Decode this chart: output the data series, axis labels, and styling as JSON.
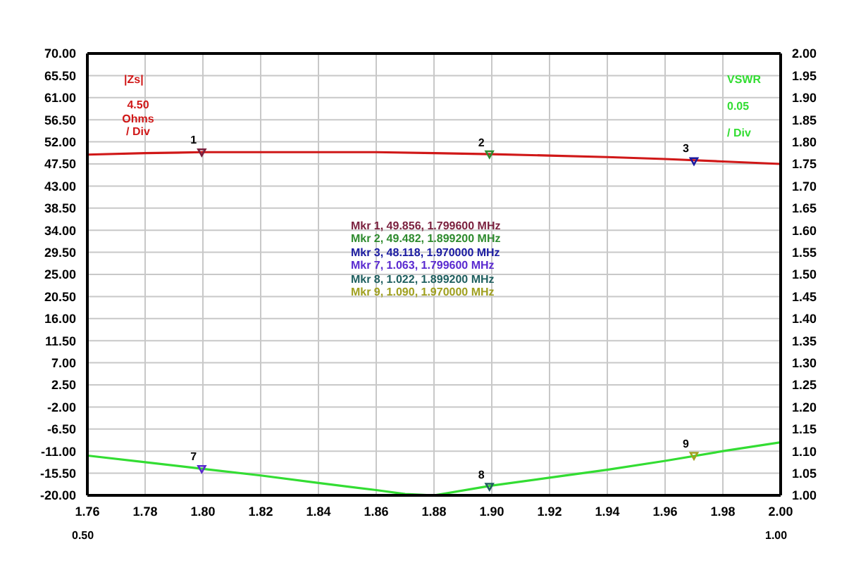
{
  "chart_data": {
    "type": "line",
    "ylabel": "|Zs|",
    "y2label": "VSWR",
    "xlim": [
      1.76,
      2.0
    ],
    "xticks": [
      {
        "value": 1.76,
        "label": "1.76"
      },
      {
        "value": 1.78,
        "label": "1.78"
      },
      {
        "value": 1.8,
        "label": "1.80"
      },
      {
        "value": 1.82,
        "label": "1.82"
      },
      {
        "value": 1.84,
        "label": "1.84"
      },
      {
        "value": 1.86,
        "label": "1.86"
      },
      {
        "value": 1.88,
        "label": "1.88"
      },
      {
        "value": 1.9,
        "label": "1.90"
      },
      {
        "value": 1.92,
        "label": "1.92"
      },
      {
        "value": 1.94,
        "label": "1.94"
      },
      {
        "value": 1.96,
        "label": "1.96"
      },
      {
        "value": 1.98,
        "label": "1.98"
      },
      {
        "value": 2.0,
        "label": "2.00"
      }
    ],
    "ylim": [
      -20,
      70
    ],
    "yticks": [
      {
        "value": -20,
        "label": "-20.00"
      },
      {
        "value": -15.5,
        "label": "-15.50"
      },
      {
        "value": -11,
        "label": "-11.00"
      },
      {
        "value": -6.5,
        "label": "-6.50"
      },
      {
        "value": -2,
        "label": "-2.00"
      },
      {
        "value": 2.5,
        "label": "2.50"
      },
      {
        "value": 7,
        "label": "7.00"
      },
      {
        "value": 11.5,
        "label": "11.50"
      },
      {
        "value": 16,
        "label": "16.00"
      },
      {
        "value": 20.5,
        "label": "20.50"
      },
      {
        "value": 25,
        "label": "25.00"
      },
      {
        "value": 29.5,
        "label": "29.50"
      },
      {
        "value": 34,
        "label": "34.00"
      },
      {
        "value": 38.5,
        "label": "38.50"
      },
      {
        "value": 43,
        "label": "43.00"
      },
      {
        "value": 47.5,
        "label": "47.50"
      },
      {
        "value": 52,
        "label": "52.00"
      },
      {
        "value": 56.5,
        "label": "56.50"
      },
      {
        "value": 61,
        "label": "61.00"
      },
      {
        "value": 65.5,
        "label": "65.50"
      },
      {
        "value": 70,
        "label": "70.00"
      }
    ],
    "y2lim": [
      1.0,
      2.0
    ],
    "y2ticks": [
      {
        "value": 1.0,
        "label": "1.00"
      },
      {
        "value": 1.05,
        "label": "1.05"
      },
      {
        "value": 1.1,
        "label": "1.10"
      },
      {
        "value": 1.15,
        "label": "1.15"
      },
      {
        "value": 1.2,
        "label": "1.20"
      },
      {
        "value": 1.25,
        "label": "1.25"
      },
      {
        "value": 1.3,
        "label": "1.30"
      },
      {
        "value": 1.35,
        "label": "1.35"
      },
      {
        "value": 1.4,
        "label": "1.40"
      },
      {
        "value": 1.45,
        "label": "1.45"
      },
      {
        "value": 1.5,
        "label": "1.50"
      },
      {
        "value": 1.55,
        "label": "1.55"
      },
      {
        "value": 1.6,
        "label": "1.60"
      },
      {
        "value": 1.65,
        "label": "1.65"
      },
      {
        "value": 1.7,
        "label": "1.70"
      },
      {
        "value": 1.75,
        "label": "1.75"
      },
      {
        "value": 1.8,
        "label": "1.80"
      },
      {
        "value": 1.85,
        "label": "1.85"
      },
      {
        "value": 1.9,
        "label": "1.90"
      },
      {
        "value": 1.95,
        "label": "1.95"
      },
      {
        "value": 2.0,
        "label": "2.00"
      }
    ],
    "grid": true,
    "series": [
      {
        "color": "#d01818",
        "x": [
          1.76,
          1.78,
          1.8,
          1.82,
          1.84,
          1.86,
          1.88,
          1.9,
          1.92,
          1.94,
          1.96,
          1.98,
          2.0
        ],
        "values": [
          49.4,
          49.7,
          49.9,
          49.9,
          49.9,
          49.9,
          49.7,
          49.5,
          49.2,
          48.9,
          48.5,
          48.0,
          47.5
        ]
      },
      {
        "color": "#33dd33",
        "axis": "y2",
        "x": [
          1.76,
          1.78,
          1.8,
          1.82,
          1.84,
          1.86,
          1.87,
          1.88,
          1.9,
          1.92,
          1.94,
          1.96,
          1.98,
          2.0
        ],
        "values": [
          1.09,
          1.075,
          1.06,
          1.045,
          1.028,
          1.012,
          1.003,
          1.0,
          1.022,
          1.04,
          1.058,
          1.078,
          1.1,
          1.12
        ]
      },
      {
        "type": "scatter",
        "marker": "triangle",
        "x": [
          1.7996,
          1.8992,
          1.97
        ],
        "values": [
          49.9,
          49.5,
          48.1
        ],
        "colors": [
          "#7a1f3d",
          "#2e8b2e",
          "#1a1aa0"
        ]
      },
      {
        "type": "scatter",
        "marker": "triangle",
        "axis": "y2",
        "x": [
          1.7996,
          1.8992,
          1.97
        ],
        "values": [
          1.06,
          1.02,
          1.09
        ],
        "colors": [
          "#5a2ad0",
          "#1f5f5f",
          "#a0a020"
        ]
      }
    ],
    "annotations": [
      "Mkr 1, 49.856, 1.799600 MHz",
      "Mkr 2, 49.482, 1.899200 MHz",
      "Mkr 3, 48.118, 1.970000 MHz",
      "Mkr 7, 1.063, 1.799600 MHz",
      "Mkr 8, 1.022, 1.899200 MHz",
      "Mkr 9, 1.090, 1.970000 MHz",
      "1",
      "2",
      "3",
      "7",
      "8",
      "9",
      "4.50",
      "Ohms",
      "/ Div",
      "0.05",
      "/ Div",
      "0.50",
      "1.00"
    ]
  }
}
